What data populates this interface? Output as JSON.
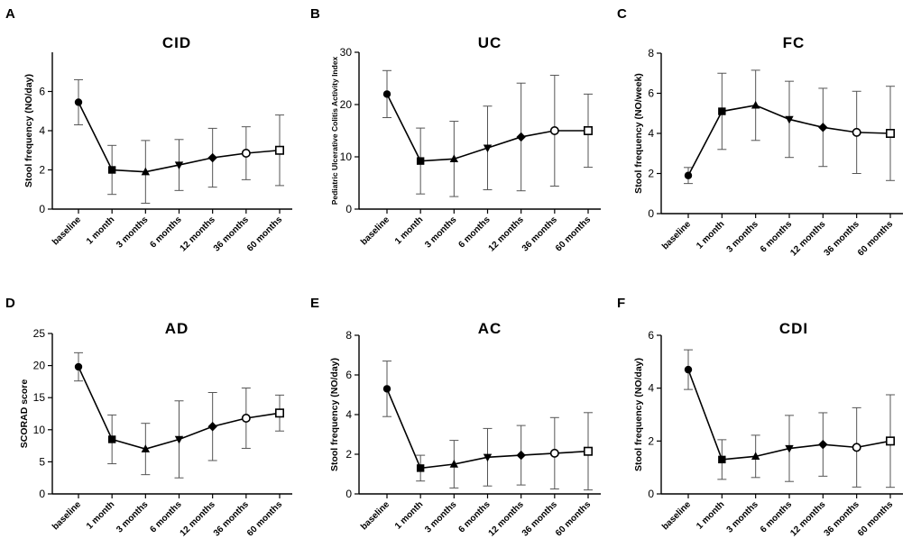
{
  "chart_data": [
    {
      "panel": "A",
      "type": "line",
      "title": "CID",
      "xlabel": "",
      "ylabel": "Stool frequency (NO/day)",
      "categories": [
        "baseline",
        "1 month",
        "3 months",
        "6 months",
        "12 months",
        "36 months",
        "60 months"
      ],
      "ylim": [
        0,
        8
      ],
      "yticks": [
        0,
        2,
        4,
        6
      ],
      "values": [
        5.45,
        2.0,
        1.9,
        2.25,
        2.62,
        2.85,
        3.0
      ],
      "errors": [
        1.15,
        1.25,
        1.6,
        1.3,
        1.5,
        1.35,
        1.8
      ]
    },
    {
      "panel": "B",
      "type": "line",
      "title": "UC",
      "xlabel": "",
      "ylabel": "Pediatric Ulcerative Colitis Activity Index",
      "categories": [
        "baseline",
        "1 month",
        "3 months",
        "6 months",
        "12 months",
        "36 months",
        "60 months"
      ],
      "ylim": [
        0,
        30
      ],
      "yticks": [
        0,
        10,
        20,
        30
      ],
      "values": [
        22.0,
        9.2,
        9.6,
        11.7,
        13.8,
        15.0,
        15.0
      ],
      "errors": [
        4.5,
        6.3,
        7.2,
        8.0,
        10.3,
        10.6,
        7.0
      ]
    },
    {
      "panel": "C",
      "type": "line",
      "title": "FC",
      "xlabel": "",
      "ylabel": "Stool frequency (NO/week)",
      "categories": [
        "baseline",
        "1 month",
        "3 months",
        "6 months",
        "12 months",
        "36 months",
        "60 months"
      ],
      "ylim": [
        0,
        8
      ],
      "yticks": [
        0,
        2,
        4,
        6,
        8
      ],
      "values": [
        1.9,
        5.1,
        5.4,
        4.7,
        4.3,
        4.05,
        4.0
      ],
      "errors": [
        0.4,
        1.9,
        1.75,
        1.9,
        1.95,
        2.05,
        2.35
      ]
    },
    {
      "panel": "D",
      "type": "line",
      "title": "AD",
      "xlabel": "",
      "ylabel": "SCORAD score",
      "categories": [
        "baseline",
        "1 month",
        "3 months",
        "6 months",
        "12 months",
        "36 months",
        "60 months"
      ],
      "ylim": [
        0,
        25
      ],
      "yticks": [
        0,
        5,
        10,
        15,
        20,
        25
      ],
      "values": [
        19.8,
        8.5,
        7.0,
        8.5,
        10.5,
        11.8,
        12.6
      ],
      "errors": [
        2.2,
        3.8,
        4.0,
        6.0,
        5.3,
        4.7,
        2.8
      ]
    },
    {
      "panel": "E",
      "type": "line",
      "title": "AC",
      "xlabel": "",
      "ylabel": "Stool frequency (NO/day)",
      "categories": [
        "baseline",
        "1 month",
        "3 months",
        "6 months",
        "12 months",
        "36 months",
        "60 months"
      ],
      "ylim": [
        0,
        8
      ],
      "yticks": [
        0,
        2,
        4,
        6,
        8
      ],
      "values": [
        5.3,
        1.3,
        1.5,
        1.85,
        1.95,
        2.05,
        2.15
      ],
      "errors": [
        1.4,
        0.65,
        1.2,
        1.45,
        1.5,
        1.8,
        1.95
      ]
    },
    {
      "panel": "F",
      "type": "line",
      "title": "CDI",
      "xlabel": "",
      "ylabel": "Stool frequency (NO/day)",
      "categories": [
        "baseline",
        "1 month",
        "3 months",
        "6 months",
        "12 months",
        "36 months",
        "60 months"
      ],
      "ylim": [
        0,
        6
      ],
      "yticks": [
        0,
        2,
        4,
        6
      ],
      "values": [
        4.7,
        1.3,
        1.42,
        1.72,
        1.87,
        1.76,
        2.0
      ],
      "errors": [
        0.75,
        0.75,
        0.8,
        1.25,
        1.2,
        1.5,
        1.75
      ]
    }
  ],
  "marker_shapes": [
    "circle",
    "square",
    "triangle",
    "triangle-down",
    "diamond",
    "circle-open",
    "square-open"
  ],
  "colors": {
    "line": "#000000",
    "error_bar": "#555555",
    "background": "#ffffff"
  }
}
